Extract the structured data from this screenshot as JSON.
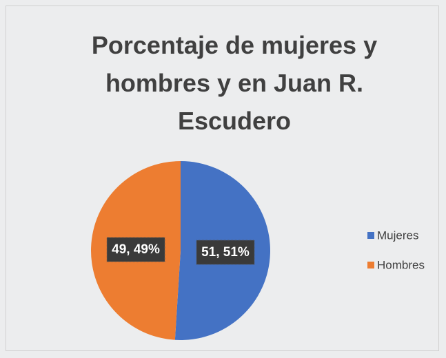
{
  "chart_data": {
    "type": "pie",
    "title": "Porcentaje de mujeres y hombres y en Juan R. Escudero",
    "categories": [
      "Mujeres",
      "Hombres"
    ],
    "values": [
      51,
      49
    ],
    "value_labels": [
      "51, 51%",
      "49, 49%"
    ],
    "colors": [
      "#4472c4",
      "#ed7d31"
    ],
    "legend": "right"
  }
}
